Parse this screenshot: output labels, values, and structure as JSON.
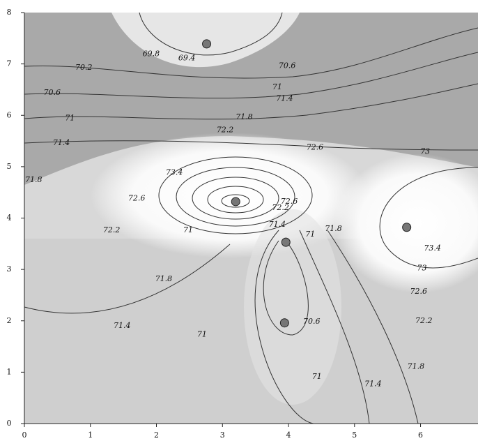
{
  "chart_data": {
    "type": "contour",
    "xlim": [
      0,
      6.87
    ],
    "ylim": [
      0,
      8
    ],
    "xticks": [
      0,
      1,
      2,
      3,
      4,
      5,
      6
    ],
    "yticks": [
      0,
      1,
      2,
      3,
      4,
      5,
      6,
      7,
      8
    ],
    "points": {
      "x": [
        2.76,
        3.2,
        3.96,
        5.79,
        3.94
      ],
      "y": [
        7.39,
        4.32,
        3.53,
        3.82,
        1.96
      ]
    },
    "contour_labels": [
      {
        "value": 69.8,
        "x": 1.92,
        "y": 7.19
      },
      {
        "value": 69.4,
        "x": 2.46,
        "y": 7.11
      },
      {
        "value": 70.2,
        "x": 0.9,
        "y": 6.93
      },
      {
        "value": 70.6,
        "x": 3.98,
        "y": 6.96
      },
      {
        "value": 70.6,
        "x": 0.42,
        "y": 6.44
      },
      {
        "value": 71,
        "x": 3.83,
        "y": 6.55
      },
      {
        "value": 71.4,
        "x": 3.94,
        "y": 6.32
      },
      {
        "value": 71,
        "x": 0.69,
        "y": 5.94
      },
      {
        "value": 71.8,
        "x": 3.33,
        "y": 5.96
      },
      {
        "value": 71.4,
        "x": 0.56,
        "y": 5.46
      },
      {
        "value": 72.2,
        "x": 3.04,
        "y": 5.71
      },
      {
        "value": 72.6,
        "x": 4.4,
        "y": 5.37
      },
      {
        "value": 73,
        "x": 6.07,
        "y": 5.29
      },
      {
        "value": 73.4,
        "x": 2.27,
        "y": 4.88
      },
      {
        "value": 72.6,
        "x": 1.7,
        "y": 4.38
      },
      {
        "value": 72.6,
        "x": 4.01,
        "y": 4.32
      },
      {
        "value": 72.2,
        "x": 3.88,
        "y": 4.2
      },
      {
        "value": 71.8,
        "x": 0.14,
        "y": 4.74
      },
      {
        "value": 71,
        "x": 2.48,
        "y": 3.76
      },
      {
        "value": 72.2,
        "x": 1.32,
        "y": 3.76
      },
      {
        "value": 71.4,
        "x": 3.83,
        "y": 3.87
      },
      {
        "value": 71,
        "x": 4.33,
        "y": 3.68
      },
      {
        "value": 71.8,
        "x": 4.68,
        "y": 3.79
      },
      {
        "value": 73.4,
        "x": 6.18,
        "y": 3.41
      },
      {
        "value": 73,
        "x": 6.02,
        "y": 3.02
      },
      {
        "value": 72.6,
        "x": 5.97,
        "y": 2.57
      },
      {
        "value": 71.8,
        "x": 2.11,
        "y": 2.81
      },
      {
        "value": 72.2,
        "x": 6.05,
        "y": 2.0
      },
      {
        "value": 71.4,
        "x": 1.48,
        "y": 1.9
      },
      {
        "value": 70.6,
        "x": 4.35,
        "y": 1.98
      },
      {
        "value": 71,
        "x": 2.69,
        "y": 1.73
      },
      {
        "value": 71,
        "x": 4.43,
        "y": 0.91
      },
      {
        "value": 71.4,
        "x": 5.28,
        "y": 0.77
      },
      {
        "value": 71.8,
        "x": 5.93,
        "y": 1.11
      }
    ]
  }
}
